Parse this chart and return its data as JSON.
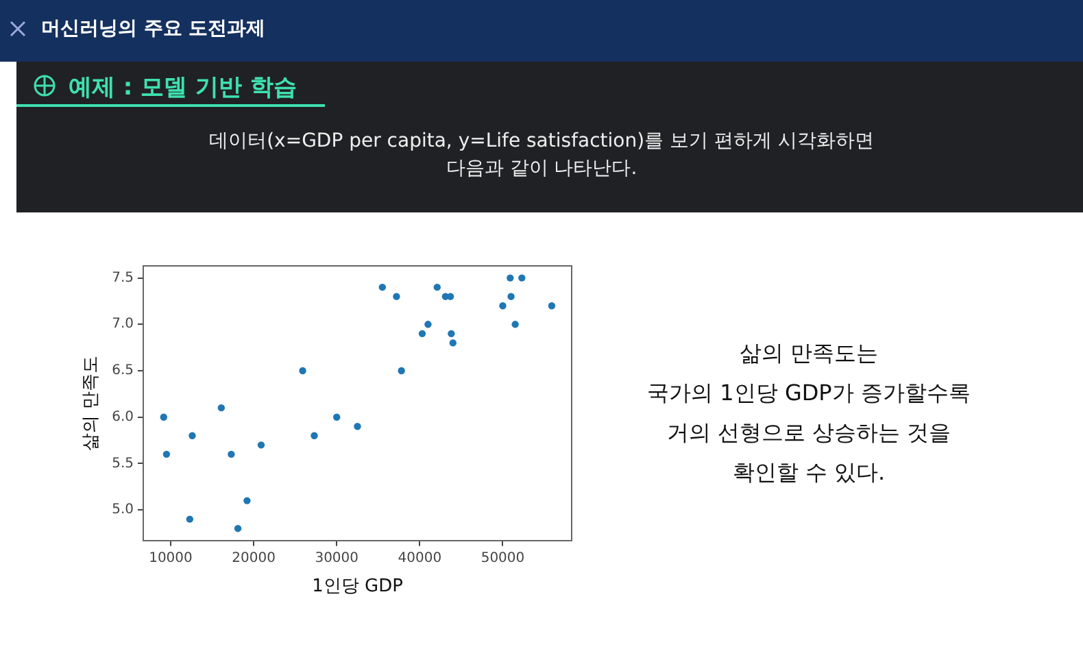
{
  "chart_data": {
    "type": "scatter",
    "title": "머신러닝의 주요 도전과제",
    "subtitle": "예제 : 모델 기반 학습",
    "xlabel": "1인당 GDP",
    "ylabel": "삶의 만족도",
    "x": [
      9160,
      9500,
      12600,
      12300,
      16100,
      17300,
      18100,
      19200,
      20900,
      25900,
      27300,
      30000,
      32500,
      35500,
      37200,
      37800,
      40300,
      41000,
      42100,
      43100,
      43700,
      43800,
      44000,
      50000,
      50900,
      51000,
      51500,
      52300,
      55900
    ],
    "values": [
      6.0,
      5.6,
      5.8,
      4.9,
      6.1,
      5.6,
      4.8,
      5.1,
      5.7,
      6.5,
      5.8,
      6.0,
      5.9,
      7.4,
      7.3,
      6.5,
      6.9,
      7.0,
      7.4,
      7.3,
      7.3,
      6.9,
      6.8,
      7.2,
      7.5,
      7.3,
      7.0,
      7.5,
      7.2
    ],
    "color": "#1f77b4",
    "marker": "circle",
    "grid": false,
    "legend": false,
    "xlim": [
      6700,
      58300
    ],
    "ylim": [
      4.67,
      7.63
    ],
    "xticks": [
      10000,
      20000,
      30000,
      40000,
      50000
    ],
    "yticks": [
      {
        "value": 5,
        "label": "5.0"
      },
      {
        "value": 5.5,
        "label": "5.5"
      },
      {
        "value": 6,
        "label": "6.0"
      },
      {
        "value": 6.5,
        "label": "6.5"
      },
      {
        "value": 7,
        "label": "7.0"
      },
      {
        "value": 7.5,
        "label": "7.5"
      }
    ],
    "annotations": [
      "데이터(x=GDP per capita, y=Life satisfaction)를 보기 편하게 시각화하면\n다음과 같이 나타난다.",
      "삶의 만족도는\n국가의 1인당 GDP가 증가할수록\n거의 선형으로 상승하는 것을\n확인할 수 있다."
    ]
  }
}
